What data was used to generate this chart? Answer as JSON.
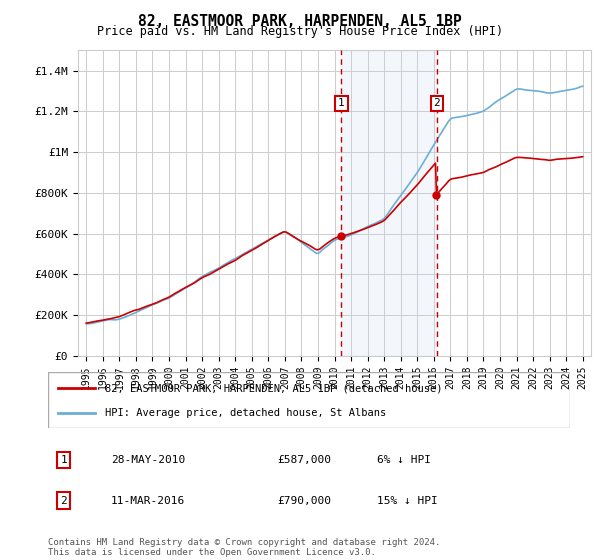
{
  "title": "82, EASTMOOR PARK, HARPENDEN, AL5 1BP",
  "subtitle": "Price paid vs. HM Land Registry's House Price Index (HPI)",
  "hpi_color": "#6baed6",
  "price_color": "#cc0000",
  "vline_color": "#cc0000",
  "shade_color": "#c6dbef",
  "background_color": "#ffffff",
  "grid_color": "#cccccc",
  "ylim": [
    0,
    1500000
  ],
  "yticks": [
    0,
    200000,
    400000,
    600000,
    800000,
    1000000,
    1200000,
    1400000
  ],
  "ytick_labels": [
    "£0",
    "£200K",
    "£400K",
    "£600K",
    "£800K",
    "£1M",
    "£1.2M",
    "£1.4M"
  ],
  "sale1_year": 2010.42,
  "sale1_label": "1",
  "sale1_date": "28-MAY-2010",
  "sale1_price": "£587,000",
  "sale1_price_val": 587000,
  "sale1_hpi": "6% ↓ HPI",
  "sale2_year": 2016.19,
  "sale2_label": "2",
  "sale2_date": "11-MAR-2016",
  "sale2_price": "£790,000",
  "sale2_price_val": 790000,
  "sale2_hpi": "15% ↓ HPI",
  "legend_line1": "82, EASTMOOR PARK, HARPENDEN, AL5 1BP (detached house)",
  "legend_line2": "HPI: Average price, detached house, St Albans",
  "footer": "Contains HM Land Registry data © Crown copyright and database right 2024.\nThis data is licensed under the Open Government Licence v3.0."
}
